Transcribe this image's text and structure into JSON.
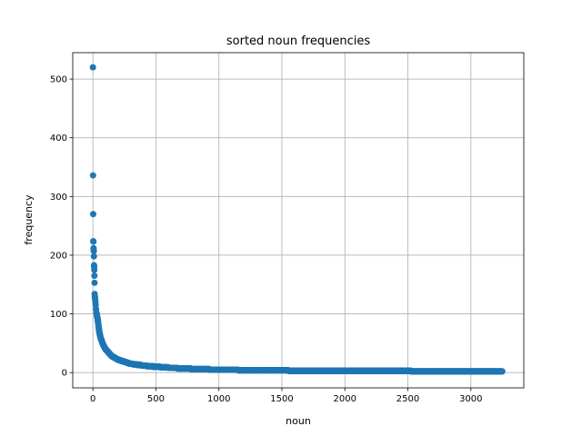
{
  "chart_data": {
    "type": "scatter",
    "title": "sorted noun frequencies",
    "xlabel": "noun",
    "ylabel": "frequency",
    "xlim": [
      -160,
      3420
    ],
    "ylim": [
      -26,
      545
    ],
    "xticks": [
      0,
      500,
      1000,
      1500,
      2000,
      2500,
      3000
    ],
    "yticks": [
      0,
      100,
      200,
      300,
      400,
      500
    ],
    "grid": true,
    "color": "#1f77b4",
    "n_points": 3250,
    "head_points": [
      {
        "x": 0,
        "y": 520
      },
      {
        "x": 1,
        "y": 336
      },
      {
        "x": 2,
        "y": 270
      },
      {
        "x": 3,
        "y": 224
      },
      {
        "x": 4,
        "y": 223
      },
      {
        "x": 5,
        "y": 212
      },
      {
        "x": 6,
        "y": 210
      },
      {
        "x": 7,
        "y": 207
      },
      {
        "x": 8,
        "y": 198
      },
      {
        "x": 9,
        "y": 183
      },
      {
        "x": 10,
        "y": 180
      },
      {
        "x": 11,
        "y": 175
      },
      {
        "x": 12,
        "y": 165
      },
      {
        "x": 13,
        "y": 153
      },
      {
        "x": 14,
        "y": 134
      },
      {
        "x": 15,
        "y": 130
      },
      {
        "x": 16,
        "y": 128
      },
      {
        "x": 17,
        "y": 127
      },
      {
        "x": 18,
        "y": 124
      },
      {
        "x": 20,
        "y": 120
      },
      {
        "x": 22,
        "y": 115
      },
      {
        "x": 25,
        "y": 108
      },
      {
        "x": 28,
        "y": 102
      }
    ],
    "curve": [
      {
        "x": 28,
        "y": 102
      },
      {
        "x": 40,
        "y": 88
      },
      {
        "x": 50,
        "y": 70
      },
      {
        "x": 60,
        "y": 60
      },
      {
        "x": 80,
        "y": 48
      },
      {
        "x": 100,
        "y": 40
      },
      {
        "x": 150,
        "y": 28
      },
      {
        "x": 200,
        "y": 22
      },
      {
        "x": 300,
        "y": 15
      },
      {
        "x": 400,
        "y": 12
      },
      {
        "x": 500,
        "y": 10
      },
      {
        "x": 700,
        "y": 7
      },
      {
        "x": 1000,
        "y": 5
      },
      {
        "x": 1300,
        "y": 4
      },
      {
        "x": 1800,
        "y": 3
      },
      {
        "x": 3250,
        "y": 2
      }
    ]
  }
}
